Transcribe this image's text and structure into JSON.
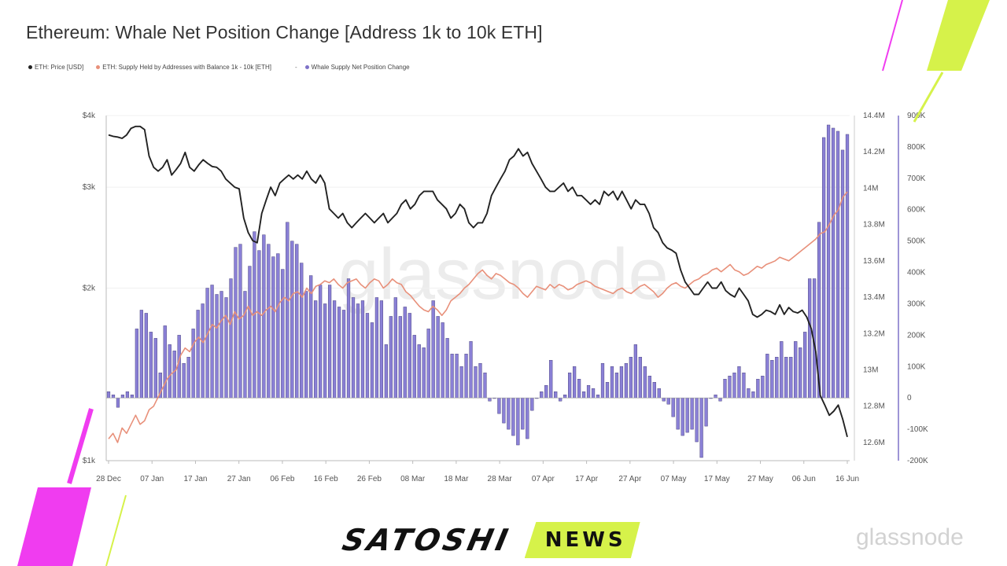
{
  "title": "Ethereum: Whale Net Position Change [Address 1k to 10k ETH]",
  "legend": {
    "items": [
      {
        "label": "ETH: Price [USD]",
        "color": "#222222"
      },
      {
        "label": "ETH: Supply Held by Addresses with Balance 1k - 10k [ETH]",
        "color": "#e8907a"
      }
    ],
    "separator": "-",
    "net_item": {
      "label": "Whale Supply Net Position Change",
      "color": "#7e72c8"
    }
  },
  "watermark": "glassnode",
  "bg_watermark": "glassnode",
  "brand": {
    "name": "SATOSHI",
    "tag": "NEWS"
  },
  "colors": {
    "price": "#222222",
    "supply": "#e8907a",
    "bars": "#8a80d6",
    "bar_edge": "#3b3470",
    "accent_pink": "#f03cf0",
    "accent_lime": "#d6f24a"
  },
  "chart_data": {
    "type": "bar",
    "x_ticks": [
      "28 Dec",
      "07 Jan",
      "17 Jan",
      "27 Jan",
      "06 Feb",
      "16 Feb",
      "26 Feb",
      "08 Mar",
      "18 Mar",
      "28 Mar",
      "07 Apr",
      "17 Apr",
      "27 Apr",
      "07 May",
      "17 May",
      "27 May",
      "06 Jun",
      "16 Jun"
    ],
    "y_left_ticks": [
      "$4k",
      "$3k",
      "$2k",
      "$1k"
    ],
    "y_left_scale": "log",
    "y_left_range": [
      1000,
      4000
    ],
    "y_mid_ticks": [
      "14.4M",
      "14.2M",
      "14M",
      "13.8M",
      "13.6M",
      "13.4M",
      "13.2M",
      "13M",
      "12.8M",
      "12.6M"
    ],
    "y_mid_range": [
      12500000,
      14400000
    ],
    "y_right_ticks": [
      "900K",
      "800K",
      "700K",
      "600K",
      "500K",
      "400K",
      "300K",
      "200K",
      "100K",
      "0",
      "-100K",
      "-200K"
    ],
    "y_right_range": [
      -200000,
      900000
    ],
    "series": [
      {
        "name": "Whale Supply Net Position Change",
        "type": "bar",
        "axis": "right",
        "values": [
          20000,
          10000,
          -30000,
          10000,
          20000,
          10000,
          220000,
          280000,
          270000,
          210000,
          190000,
          80000,
          230000,
          170000,
          150000,
          200000,
          110000,
          130000,
          220000,
          280000,
          300000,
          350000,
          360000,
          330000,
          340000,
          320000,
          380000,
          480000,
          490000,
          340000,
          420000,
          530000,
          470000,
          520000,
          490000,
          450000,
          460000,
          410000,
          560000,
          500000,
          490000,
          430000,
          340000,
          390000,
          310000,
          360000,
          300000,
          360000,
          310000,
          290000,
          280000,
          380000,
          320000,
          300000,
          310000,
          270000,
          240000,
          320000,
          310000,
          170000,
          260000,
          320000,
          260000,
          290000,
          270000,
          200000,
          170000,
          160000,
          220000,
          310000,
          260000,
          240000,
          190000,
          140000,
          140000,
          100000,
          140000,
          180000,
          100000,
          110000,
          80000,
          -10000,
          0,
          -50000,
          -80000,
          -100000,
          -120000,
          -150000,
          -100000,
          -130000,
          -40000,
          0,
          20000,
          40000,
          120000,
          20000,
          -10000,
          10000,
          80000,
          100000,
          60000,
          20000,
          40000,
          30000,
          10000,
          110000,
          50000,
          100000,
          80000,
          100000,
          110000,
          130000,
          170000,
          130000,
          100000,
          70000,
          50000,
          30000,
          -10000,
          -20000,
          -60000,
          -100000,
          -120000,
          -110000,
          -100000,
          -140000,
          -190000,
          -90000,
          0,
          10000,
          -10000,
          60000,
          70000,
          80000,
          100000,
          80000,
          30000,
          20000,
          60000,
          70000,
          140000,
          120000,
          130000,
          180000,
          130000,
          130000,
          180000,
          160000,
          210000,
          380000,
          380000,
          560000,
          830000,
          870000,
          860000,
          850000,
          790000,
          840000
        ],
        "extras": {
          "x_start": "2021-12-28",
          "step_days": 1
        }
      },
      {
        "name": "ETH: Price [USD]",
        "type": "line",
        "axis": "left",
        "values": [
          3700,
          3680,
          3670,
          3650,
          3700,
          3800,
          3830,
          3830,
          3780,
          3400,
          3250,
          3200,
          3250,
          3350,
          3150,
          3220,
          3300,
          3450,
          3250,
          3200,
          3280,
          3350,
          3300,
          3260,
          3250,
          3200,
          3100,
          3050,
          3000,
          2980,
          2650,
          2500,
          2420,
          2400,
          2700,
          2850,
          3000,
          2900,
          3050,
          3100,
          3150,
          3100,
          3150,
          3100,
          3200,
          3100,
          3050,
          3150,
          3050,
          2750,
          2700,
          2650,
          2700,
          2600,
          2550,
          2600,
          2650,
          2700,
          2650,
          2600,
          2650,
          2700,
          2600,
          2650,
          2700,
          2800,
          2850,
          2750,
          2800,
          2900,
          2950,
          2950,
          2950,
          2850,
          2800,
          2750,
          2650,
          2700,
          2800,
          2750,
          2600,
          2550,
          2600,
          2600,
          2700,
          2900,
          3000,
          3100,
          3200,
          3350,
          3400,
          3500,
          3400,
          3450,
          3300,
          3200,
          3100,
          3000,
          2950,
          2950,
          3000,
          3050,
          2950,
          3000,
          2900,
          2900,
          2850,
          2800,
          2850,
          2800,
          2950,
          2900,
          2950,
          2850,
          2950,
          2850,
          2750,
          2850,
          2800,
          2800,
          2700,
          2550,
          2500,
          2400,
          2350,
          2330,
          2300,
          2150,
          2050,
          2000,
          1950,
          1950,
          2000,
          2050,
          2000,
          2000,
          2050,
          1980,
          1950,
          1930,
          2000,
          1950,
          1900,
          1800,
          1780,
          1800,
          1830,
          1820,
          1800,
          1870,
          1800,
          1850,
          1820,
          1810,
          1830,
          1780,
          1700,
          1550,
          1300,
          1250,
          1200,
          1220,
          1250,
          1180,
          1100
        ]
      },
      {
        "name": "ETH: Supply Held by Addresses with Balance 1k - 10k [ETH]",
        "type": "line",
        "axis": "mid",
        "values": [
          12620000,
          12650000,
          12600000,
          12680000,
          12650000,
          12700000,
          12750000,
          12700000,
          12720000,
          12780000,
          12800000,
          12850000,
          12900000,
          12950000,
          12980000,
          13000000,
          13080000,
          13120000,
          13100000,
          13150000,
          13180000,
          13150000,
          13200000,
          13250000,
          13230000,
          13270000,
          13300000,
          13250000,
          13320000,
          13280000,
          13300000,
          13350000,
          13300000,
          13320000,
          13300000,
          13330000,
          13350000,
          13320000,
          13370000,
          13400000,
          13380000,
          13420000,
          13430000,
          13400000,
          13450000,
          13420000,
          13460000,
          13470000,
          13490000,
          13480000,
          13500000,
          13470000,
          13450000,
          13480000,
          13490000,
          13500000,
          13470000,
          13450000,
          13480000,
          13500000,
          13490000,
          13450000,
          13470000,
          13500000,
          13480000,
          13470000,
          13430000,
          13410000,
          13380000,
          13350000,
          13330000,
          13320000,
          13350000,
          13330000,
          13300000,
          13330000,
          13380000,
          13400000,
          13420000,
          13450000,
          13470000,
          13500000,
          13530000,
          13550000,
          13520000,
          13500000,
          13530000,
          13520000,
          13500000,
          13480000,
          13470000,
          13450000,
          13420000,
          13400000,
          13430000,
          13460000,
          13450000,
          13440000,
          13470000,
          13450000,
          13470000,
          13460000,
          13440000,
          13450000,
          13470000,
          13480000,
          13490000,
          13480000,
          13460000,
          13450000,
          13440000,
          13430000,
          13420000,
          13440000,
          13450000,
          13430000,
          13420000,
          13440000,
          13460000,
          13470000,
          13450000,
          13430000,
          13400000,
          13420000,
          13450000,
          13470000,
          13480000,
          13460000,
          13450000,
          13470000,
          13490000,
          13500000,
          13520000,
          13530000,
          13550000,
          13560000,
          13540000,
          13560000,
          13580000,
          13550000,
          13540000,
          13520000,
          13530000,
          13550000,
          13570000,
          13560000,
          13580000,
          13590000,
          13600000,
          13620000,
          13610000,
          13600000,
          13620000,
          13640000,
          13660000,
          13680000,
          13700000,
          13720000,
          13750000,
          13760000,
          13800000,
          13850000,
          13880000,
          13950000,
          13980000
        ]
      }
    ],
    "ylim": [
      -200000,
      900000
    ]
  }
}
